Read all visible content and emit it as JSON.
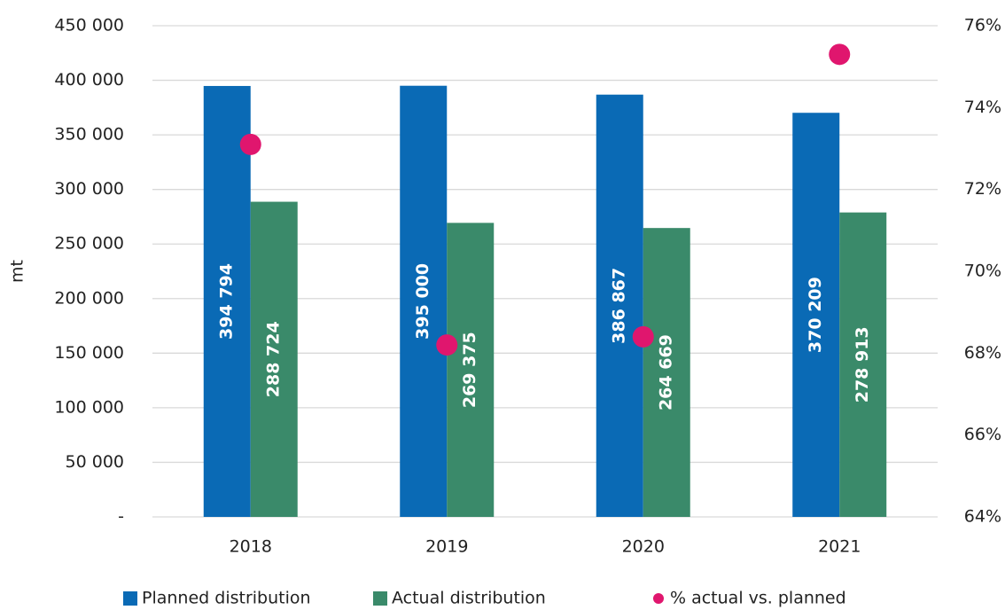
{
  "chart_data": {
    "type": "bar",
    "y_label": "mt",
    "categories": [
      "2018",
      "2019",
      "2020",
      "2021"
    ],
    "series": [
      {
        "name": "Planned distribution",
        "color": "#0a6ab5",
        "values": [
          394794,
          395000,
          386867,
          370209
        ],
        "value_labels": [
          "394 794",
          "395 000",
          "386 867",
          "370 209"
        ]
      },
      {
        "name": "Actual distribution",
        "color": "#3a8a6a",
        "values": [
          288724,
          269375,
          264669,
          278913
        ],
        "value_labels": [
          "288 724",
          "269 375",
          "264 669",
          "278 913"
        ]
      },
      {
        "name": "% actual vs. planned",
        "color": "#e0166e",
        "axis": "y2",
        "values": [
          73.1,
          68.2,
          68.4,
          75.3
        ]
      }
    ],
    "ylim": [
      0,
      450000
    ],
    "yticks": [
      {
        "value": 0,
        "label": "-"
      },
      {
        "value": 50000,
        "label": "50 000"
      },
      {
        "value": 100000,
        "label": "100 000"
      },
      {
        "value": 150000,
        "label": "150 000"
      },
      {
        "value": 200000,
        "label": "200 000"
      },
      {
        "value": 250000,
        "label": "250 000"
      },
      {
        "value": 300000,
        "label": "300 000"
      },
      {
        "value": 350000,
        "label": "350 000"
      },
      {
        "value": 400000,
        "label": "400 000"
      },
      {
        "value": 450000,
        "label": "450 000"
      }
    ],
    "y2lim": [
      64,
      76
    ],
    "y2ticks": [
      {
        "value": 64,
        "label": "64%"
      },
      {
        "value": 66,
        "label": "66%"
      },
      {
        "value": 68,
        "label": "68%"
      },
      {
        "value": 70,
        "label": "70%"
      },
      {
        "value": 72,
        "label": "72%"
      },
      {
        "value": 74,
        "label": "74%"
      },
      {
        "value": 76,
        "label": "76%"
      }
    ],
    "grid": true,
    "legend": "bottom"
  }
}
